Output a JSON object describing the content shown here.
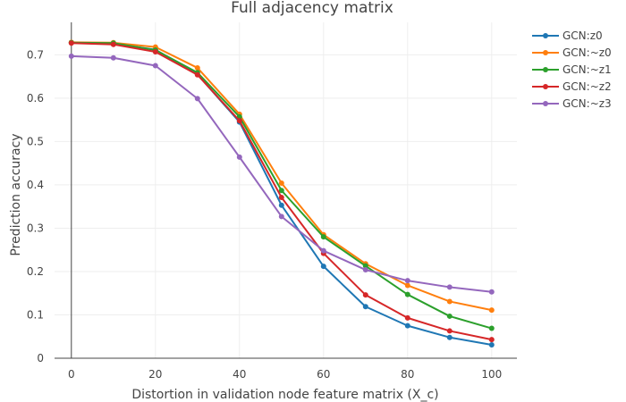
{
  "chart_data": {
    "type": "line",
    "title": "Full adjacency matrix",
    "xlabel": "Distortion in validation node feature matrix (X_c)",
    "ylabel": "Prediction accuracy",
    "xlim": [
      -4,
      106
    ],
    "ylim": [
      0,
      0.775
    ],
    "xticks": [
      0,
      20,
      40,
      60,
      80,
      100
    ],
    "yticks": [
      0,
      0.1,
      0.2,
      0.3,
      0.4,
      0.5,
      0.6,
      0.7
    ],
    "ytick_labels": [
      "0",
      "0.1",
      "0.2",
      "0.3",
      "0.4",
      "0.5",
      "0.6",
      "0.7"
    ],
    "x": [
      0,
      10,
      20,
      30,
      40,
      50,
      60,
      70,
      80,
      90,
      100
    ],
    "legend_position": "top-right",
    "series": [
      {
        "name": "GCN:z0",
        "color": "#1f77b4",
        "values": [
          0.728,
          0.726,
          0.712,
          0.655,
          0.545,
          0.353,
          0.212,
          0.119,
          0.075,
          0.048,
          0.031
        ]
      },
      {
        "name": "GCN:~z0",
        "color": "#ff7f0e",
        "values": [
          0.729,
          0.728,
          0.718,
          0.67,
          0.563,
          0.404,
          0.285,
          0.218,
          0.168,
          0.131,
          0.111
        ]
      },
      {
        "name": "GCN:~z1",
        "color": "#2ca02c",
        "values": [
          0.728,
          0.727,
          0.711,
          0.659,
          0.557,
          0.387,
          0.28,
          0.213,
          0.147,
          0.097,
          0.069
        ]
      },
      {
        "name": "GCN:~z2",
        "color": "#d62728",
        "values": [
          0.727,
          0.724,
          0.707,
          0.654,
          0.548,
          0.371,
          0.242,
          0.146,
          0.093,
          0.063,
          0.043
        ]
      },
      {
        "name": "GCN:~z3",
        "color": "#9467bd",
        "values": [
          0.697,
          0.693,
          0.675,
          0.599,
          0.464,
          0.327,
          0.248,
          0.204,
          0.179,
          0.164,
          0.153
        ]
      }
    ]
  }
}
